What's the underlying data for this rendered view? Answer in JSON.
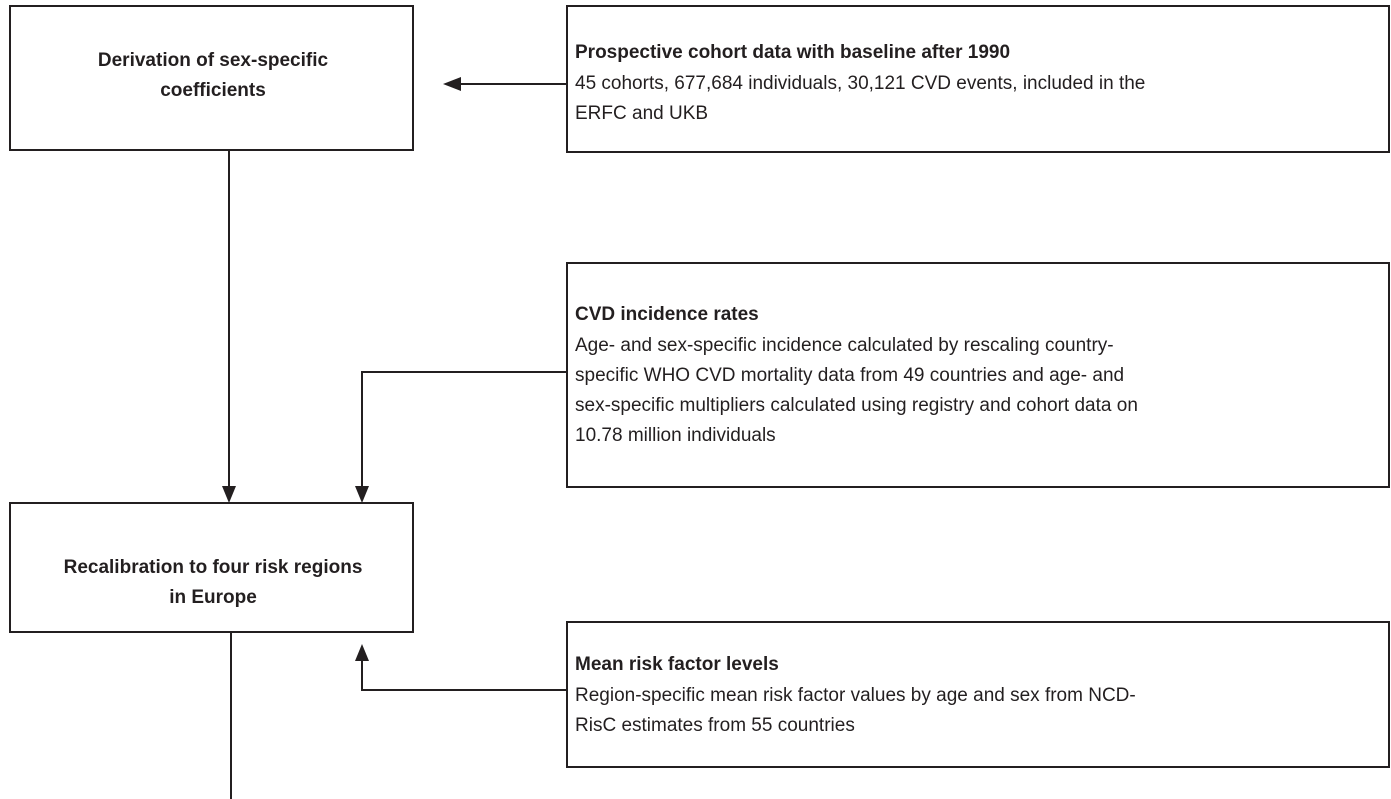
{
  "nodes": [
    {
      "lines": [
        "Derivation of sex-specific",
        "coefficients"
      ]
    },
    {
      "lines": [
        "Recalibration to four risk regions",
        "in Europe"
      ]
    }
  ],
  "sources": [
    {
      "title": "Prospective cohort data with baseline after 1990",
      "lines": [
        "45 cohorts, 677,684 individuals, 30,121 CVD events, included in the",
        "ERFC and UKB"
      ]
    },
    {
      "title": "CVD incidence rates",
      "lines": [
        "Age- and sex-specific incidence calculated by rescaling country-",
        "specific WHO CVD mortality data from 49 countries and age- and",
        "sex-specific multipliers calculated using registry and cohort data on",
        "10.78 million individuals"
      ]
    },
    {
      "title": "Mean risk factor levels",
      "lines": [
        "Region-specific mean risk factor values by age and sex from NCD-",
        "RisC estimates from 55 countries"
      ]
    }
  ]
}
